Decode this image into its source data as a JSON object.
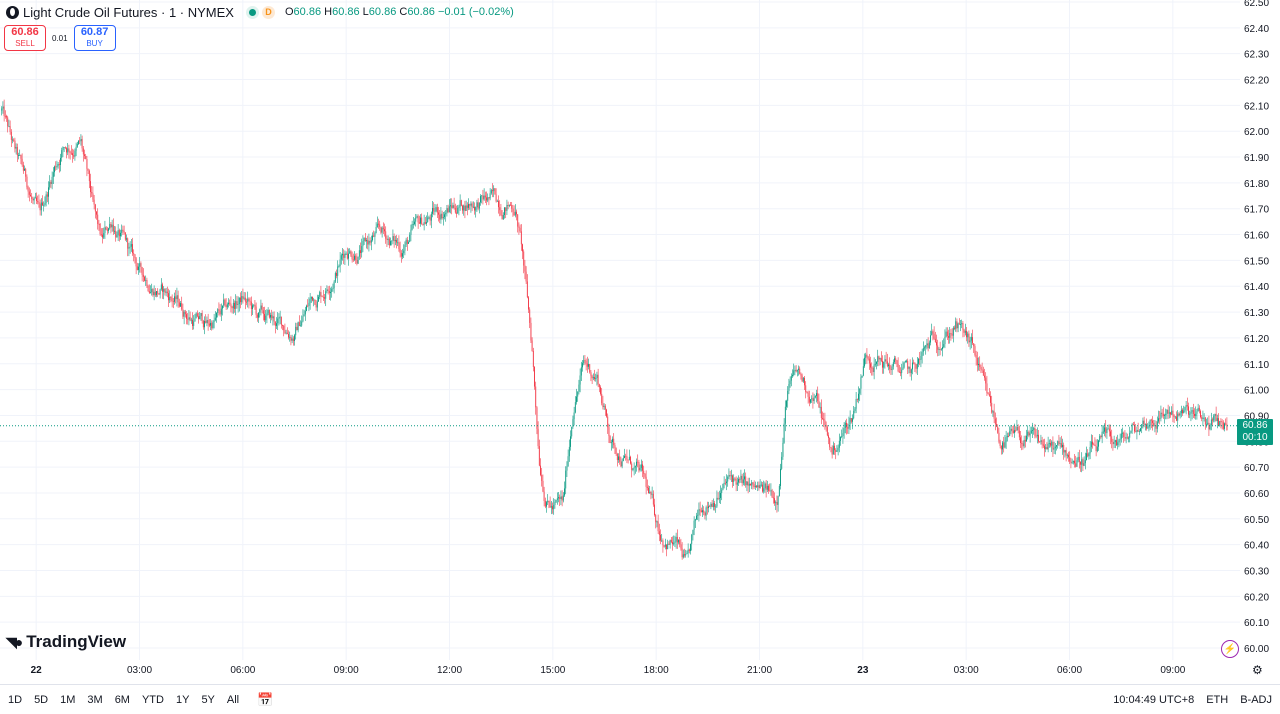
{
  "header": {
    "title": "Light Crude Oil Futures · 1 · NYMEX",
    "market_badge": "D",
    "ohlc": {
      "o_label": "O",
      "o": "60.86",
      "h_label": "H",
      "h": "60.86",
      "l_label": "L",
      "l": "60.86",
      "c_label": "C",
      "c": "60.86",
      "change": "−0.01 (−0.02%)"
    }
  },
  "trade": {
    "sell_price": "60.86",
    "sell_label": "SELL",
    "spread": "0.01",
    "buy_price": "60.87",
    "buy_label": "BUY"
  },
  "brand": {
    "name": "TradingView"
  },
  "last_price": {
    "value": "60.86",
    "countdown": "00:10"
  },
  "bottom": {
    "ranges": [
      "1D",
      "5D",
      "1M",
      "3M",
      "6M",
      "YTD",
      "1Y",
      "5Y",
      "All"
    ],
    "clock": "10:04:49 UTC+8",
    "session": "ETH",
    "adjustment": "B-ADJ"
  },
  "colors": {
    "up": "#089981",
    "down": "#f23645",
    "grid": "#f0f3fa",
    "last_line": "#089981"
  },
  "icons": {
    "calendar": "calendar-icon",
    "flash": "flash-icon",
    "settings": "gear-icon"
  },
  "chart_data": {
    "type": "candlestick",
    "y_range": [
      60.0,
      62.5
    ],
    "price_ticks": [
      "62.50",
      "62.40",
      "62.30",
      "62.20",
      "62.10",
      "62.00",
      "61.90",
      "61.80",
      "61.70",
      "61.60",
      "61.50",
      "61.40",
      "61.30",
      "61.20",
      "61.10",
      "61.00",
      "60.90",
      "60.80",
      "60.70",
      "60.60",
      "60.50",
      "60.40",
      "60.30",
      "60.20",
      "60.10",
      "60.00"
    ],
    "time_ticks": [
      {
        "label": "22",
        "bold": true,
        "hours": 0
      },
      {
        "label": "03:00",
        "hours": 3
      },
      {
        "label": "06:00",
        "hours": 6
      },
      {
        "label": "09:00",
        "hours": 9
      },
      {
        "label": "12:00",
        "hours": 12
      },
      {
        "label": "15:00",
        "hours": 15
      },
      {
        "label": "18:00",
        "hours": 18
      },
      {
        "label": "21:00",
        "hours": 21
      },
      {
        "label": "23",
        "bold": true,
        "hours": 24
      },
      {
        "label": "03:00",
        "hours": 27
      },
      {
        "label": "06:00",
        "hours": 30
      },
      {
        "label": "09:00",
        "hours": 33
      }
    ],
    "x_range_hours": [
      -1.05,
      34.95
    ],
    "last_price": 60.86,
    "path_hours": [
      -1.0,
      -0.6,
      -0.3,
      0.1,
      0.5,
      0.8,
      1.3,
      1.7,
      1.9,
      2.2,
      2.6,
      3.0,
      3.5,
      4.0,
      4.5,
      5.0,
      5.5,
      6.0,
      6.4,
      7.0,
      7.5,
      8.0,
      8.4,
      9.0,
      9.5,
      10.0,
      10.6,
      11.3,
      11.9,
      12.6,
      13.3,
      13.9,
      14.1,
      14.4,
      14.6,
      14.8,
      15.0,
      15.3,
      15.6,
      15.9,
      16.3,
      16.7,
      17.2,
      17.6,
      18.1,
      18.6,
      18.9,
      19.3,
      19.7,
      20.2,
      20.8,
      21.5,
      21.8,
      22.1,
      22.7,
      23.1,
      23.7,
      24.1,
      24.7,
      25.4,
      26.1,
      26.7,
      27.2,
      27.6,
      28.0,
      28.6,
      29.2,
      29.8,
      30.4,
      31.0,
      31.6,
      32.3,
      32.9,
      33.4,
      34.0,
      34.6
    ],
    "path_prices": [
      62.08,
      61.9,
      61.8,
      61.65,
      61.85,
      61.95,
      61.95,
      61.65,
      61.55,
      61.65,
      61.55,
      61.45,
      61.4,
      61.35,
      61.28,
      61.25,
      61.3,
      61.35,
      61.28,
      61.25,
      61.22,
      61.35,
      61.4,
      61.55,
      61.55,
      61.6,
      61.55,
      61.65,
      61.7,
      61.73,
      61.73,
      61.72,
      61.55,
      61.15,
      60.75,
      60.6,
      60.55,
      60.55,
      60.95,
      61.1,
      61.05,
      60.8,
      60.72,
      60.65,
      60.45,
      60.4,
      60.3,
      60.55,
      60.6,
      60.65,
      60.6,
      60.58,
      61.0,
      61.05,
      60.95,
      60.75,
      60.9,
      61.15,
      61.1,
      61.05,
      61.2,
      61.25,
      61.15,
      60.95,
      60.8,
      60.8,
      60.78,
      60.75,
      60.73,
      60.78,
      60.8,
      60.88,
      60.92,
      60.9,
      60.86,
      60.86
    ],
    "candle_spacing_px": 1.2
  }
}
